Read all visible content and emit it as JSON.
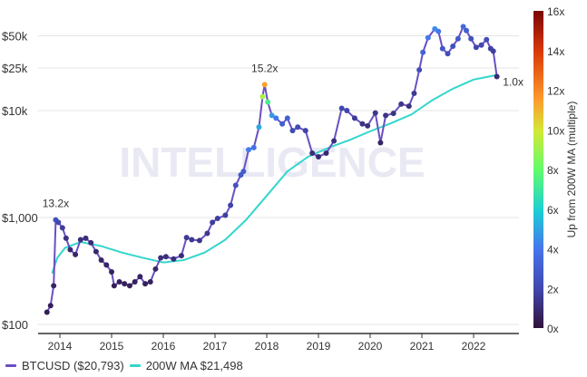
{
  "chart_data": {
    "type": "line",
    "title": "",
    "xlabel": "",
    "ylabel": "",
    "yscale": "log",
    "ylim": [
      100,
      70000
    ],
    "xlim": [
      2013.6,
      2022.9
    ],
    "y_ticks": [
      {
        "v": 100,
        "label": "$100"
      },
      {
        "v": 1000,
        "label": "$1,000"
      },
      {
        "v": 10000,
        "label": "$10k"
      },
      {
        "v": 25000,
        "label": "$25k"
      },
      {
        "v": 50000,
        "label": "$50k"
      }
    ],
    "x_ticks": [
      {
        "v": 2014,
        "label": "2014"
      },
      {
        "v": 2015,
        "label": "2015"
      },
      {
        "v": 2016,
        "label": "2016"
      },
      {
        "v": 2017,
        "label": "2017"
      },
      {
        "v": 2018,
        "label": "2018"
      },
      {
        "v": 2019,
        "label": "2019"
      },
      {
        "v": 2020,
        "label": "2020"
      },
      {
        "v": 2021,
        "label": "2021"
      },
      {
        "v": 2022,
        "label": "2022"
      }
    ],
    "grid": true,
    "series": [
      {
        "name": "BTCUSD ($20,793)",
        "color": "#6a4fc4",
        "x": [
          2013.75,
          2013.82,
          2013.88,
          2013.92,
          2013.97,
          2014.05,
          2014.12,
          2014.2,
          2014.3,
          2014.4,
          2014.5,
          2014.6,
          2014.7,
          2014.8,
          2014.9,
          2015.0,
          2015.05,
          2015.15,
          2015.25,
          2015.35,
          2015.45,
          2015.55,
          2015.65,
          2015.75,
          2015.85,
          2015.95,
          2016.05,
          2016.2,
          2016.35,
          2016.45,
          2016.55,
          2016.7,
          2016.85,
          2016.95,
          2017.05,
          2017.2,
          2017.3,
          2017.4,
          2017.5,
          2017.55,
          2017.65,
          2017.75,
          2017.85,
          2017.92,
          2017.96,
          2018.02,
          2018.1,
          2018.18,
          2018.3,
          2018.4,
          2018.5,
          2018.6,
          2018.75,
          2018.88,
          2019.0,
          2019.15,
          2019.3,
          2019.45,
          2019.55,
          2019.7,
          2019.85,
          2019.95,
          2020.1,
          2020.2,
          2020.3,
          2020.45,
          2020.6,
          2020.75,
          2020.85,
          2020.95,
          2021.02,
          2021.12,
          2021.25,
          2021.32,
          2021.4,
          2021.5,
          2021.6,
          2021.7,
          2021.8,
          2021.86,
          2021.95,
          2022.05,
          2022.15,
          2022.25,
          2022.33,
          2022.38,
          2022.45
        ],
        "values": [
          130,
          150,
          230,
          950,
          900,
          800,
          640,
          500,
          450,
          620,
          640,
          580,
          480,
          400,
          360,
          310,
          230,
          250,
          240,
          230,
          250,
          280,
          240,
          250,
          330,
          420,
          430,
          410,
          440,
          650,
          620,
          610,
          710,
          900,
          980,
          1050,
          1300,
          2000,
          2500,
          2700,
          4300,
          4500,
          7000,
          13500,
          17500,
          12000,
          9000,
          8500,
          7500,
          8500,
          6500,
          7000,
          6500,
          4000,
          3700,
          4000,
          5200,
          10500,
          10000,
          8500,
          7500,
          7200,
          9500,
          5000,
          9000,
          9400,
          11500,
          11000,
          14500,
          24000,
          35000,
          48000,
          58000,
          55000,
          38000,
          34000,
          40000,
          47000,
          61000,
          56000,
          47000,
          39000,
          41000,
          46000,
          38000,
          36000,
          20793
        ]
      },
      {
        "name": "200W MA $21,498",
        "color": "#33d6cc",
        "x": [
          2013.85,
          2013.95,
          2014.1,
          2014.4,
          2014.8,
          2015.2,
          2015.6,
          2016.0,
          2016.4,
          2016.8,
          2017.2,
          2017.6,
          2018.0,
          2018.4,
          2018.8,
          2019.2,
          2019.6,
          2020.0,
          2020.4,
          2020.8,
          2021.2,
          2021.6,
          2022.0,
          2022.45
        ],
        "values": [
          300,
          420,
          520,
          590,
          540,
          470,
          420,
          380,
          400,
          470,
          620,
          950,
          1600,
          2700,
          3700,
          4500,
          5300,
          6400,
          7600,
          9200,
          12500,
          16000,
          19500,
          21498
        ]
      }
    ],
    "annotations": [
      {
        "x": 2013.92,
        "value": 950,
        "label": "13.2x"
      },
      {
        "x": 2017.96,
        "value": 17500,
        "label": "15.2x"
      },
      {
        "x": 2022.45,
        "value": 20793,
        "label": "1.0x"
      }
    ],
    "colorbar": {
      "label": "Up from 200W MA (multiple)",
      "range": [
        0,
        16
      ],
      "ticks": [
        "0x",
        "2x",
        "4x",
        "6x",
        "8x",
        "10x",
        "12x",
        "14x",
        "16x"
      ]
    },
    "legend": {
      "placement": "bottom-left",
      "items": [
        {
          "label": "BTCUSD ($20,793)",
          "color": "#6a4fc4"
        },
        {
          "label": "200W MA $21,498",
          "color": "#33d6cc"
        }
      ]
    },
    "watermark": "INTELLIGENCE"
  }
}
